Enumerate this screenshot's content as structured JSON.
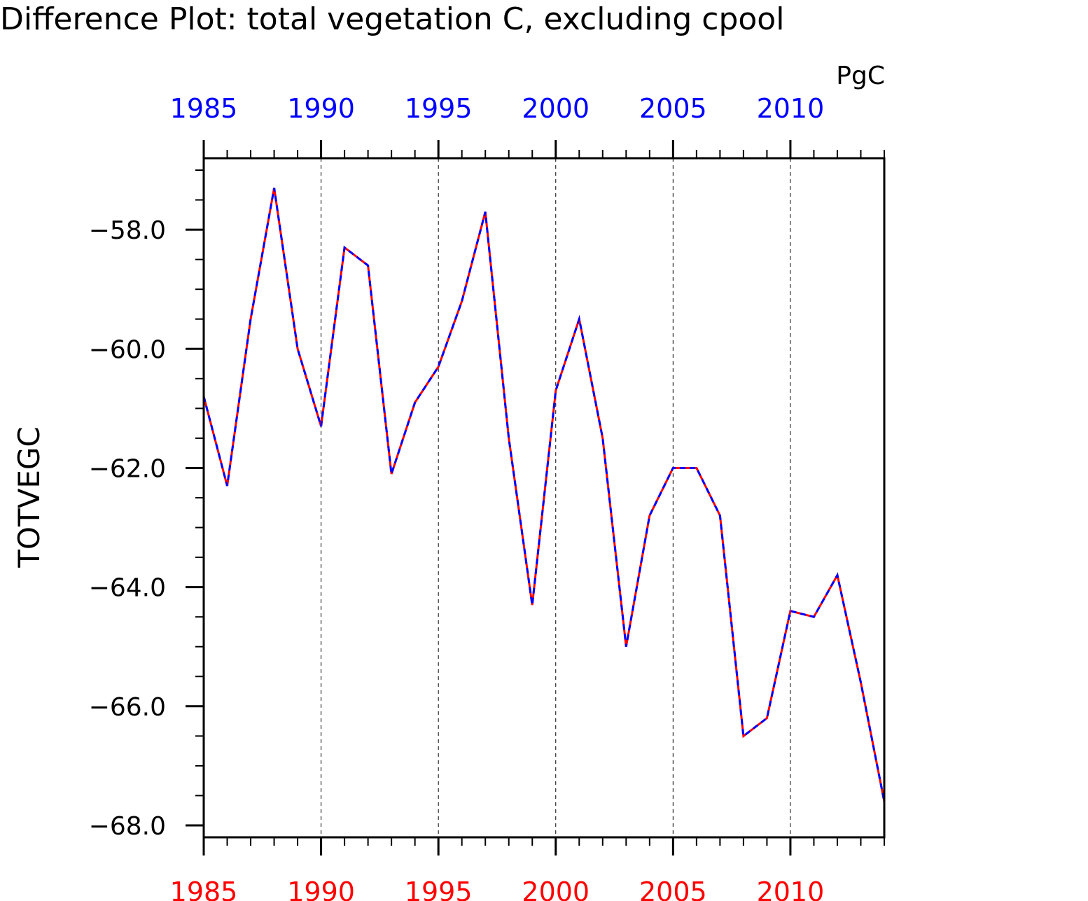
{
  "chart_data": {
    "type": "line",
    "title": "Difference Plot: total vegetation C, excluding cpool",
    "units": "PgC",
    "ylabel": "TOTVEGC",
    "xlabel": "",
    "xlim": [
      1985,
      2014
    ],
    "ylim": [
      -68.2,
      -56.8
    ],
    "grid": "vertical dashed at major x ticks",
    "x_major_ticks": [
      1985,
      1990,
      1995,
      2000,
      2005,
      2010
    ],
    "x_minor_step": 1,
    "y_major_ticks": [
      -58.0,
      -60.0,
      -62.0,
      -64.0,
      -66.0,
      -68.0
    ],
    "y_tick_labels": [
      "−58.0",
      "−60.0",
      "−62.0",
      "−64.0",
      "−66.0",
      "−68.0"
    ],
    "y_minor_step": 0.5,
    "top_axis_color": "#0000ff",
    "bottom_axis_color": "#ff0000",
    "x": [
      1985,
      1986,
      1987,
      1988,
      1989,
      1990,
      1991,
      1992,
      1993,
      1994,
      1995,
      1996,
      1997,
      1998,
      1999,
      2000,
      2001,
      2002,
      2003,
      2004,
      2005,
      2006,
      2007,
      2008,
      2009,
      2010,
      2011,
      2012,
      2013,
      2014
    ],
    "series": [
      {
        "color": "#ff0000",
        "style": "solid",
        "values": [
          -60.8,
          -62.3,
          -59.5,
          -57.3,
          -60.0,
          -61.3,
          -58.3,
          -58.6,
          -62.1,
          -60.9,
          -60.3,
          -59.2,
          -57.7,
          -61.5,
          -64.3,
          -60.7,
          -59.5,
          -61.5,
          -65.0,
          -62.8,
          -62.0,
          -62.0,
          -62.8,
          -66.5,
          -66.2,
          -64.4,
          -64.5,
          -63.8,
          -65.6,
          -67.6
        ]
      },
      {
        "color": "#0000ff",
        "style": "dashed",
        "values": [
          -60.8,
          -62.3,
          -59.5,
          -57.3,
          -60.0,
          -61.3,
          -58.3,
          -58.6,
          -62.1,
          -60.9,
          -60.3,
          -59.2,
          -57.7,
          -61.5,
          -64.3,
          -60.7,
          -59.5,
          -61.5,
          -65.0,
          -62.8,
          -62.0,
          -62.0,
          -62.8,
          -66.5,
          -66.2,
          -64.4,
          -64.5,
          -63.8,
          -65.6,
          -67.6
        ]
      }
    ]
  }
}
